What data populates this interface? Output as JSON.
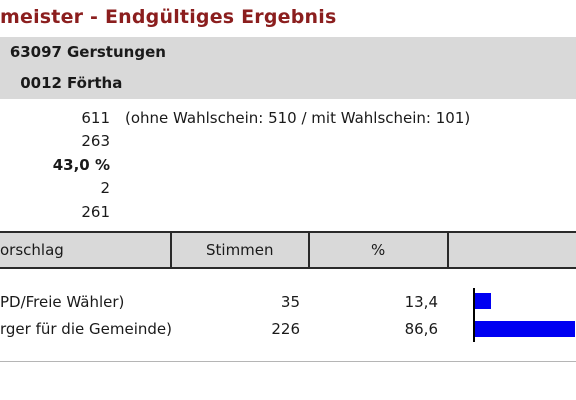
{
  "title": "meister - Endgültiges Ergebnis",
  "regions": [
    {
      "code": "63097",
      "name": "Gerstungen"
    },
    {
      "code": "0012",
      "name": "Förtha"
    }
  ],
  "stats": {
    "voters": "611",
    "voters_note": "(ohne Wahlschein: 510 / mit Wahlschein: 101)",
    "turnout_votes": "263",
    "turnout_pct": "43,0 %",
    "invalid": "2",
    "valid": "261"
  },
  "table": {
    "col_candidate": "orschlag",
    "col_votes": "Stimmen",
    "col_pct": "%"
  },
  "candidates": [
    {
      "name": "PD/Freie Wähler)",
      "votes": "35",
      "pct": "13,4",
      "share": 13.4
    },
    {
      "name": "rger für die Gemeinde)",
      "votes": "226",
      "pct": "86,6",
      "share": 86.6
    }
  ],
  "colors": {
    "title": "#8b1e1e",
    "bar": "#0000f2",
    "band": "#d9d9d9"
  }
}
